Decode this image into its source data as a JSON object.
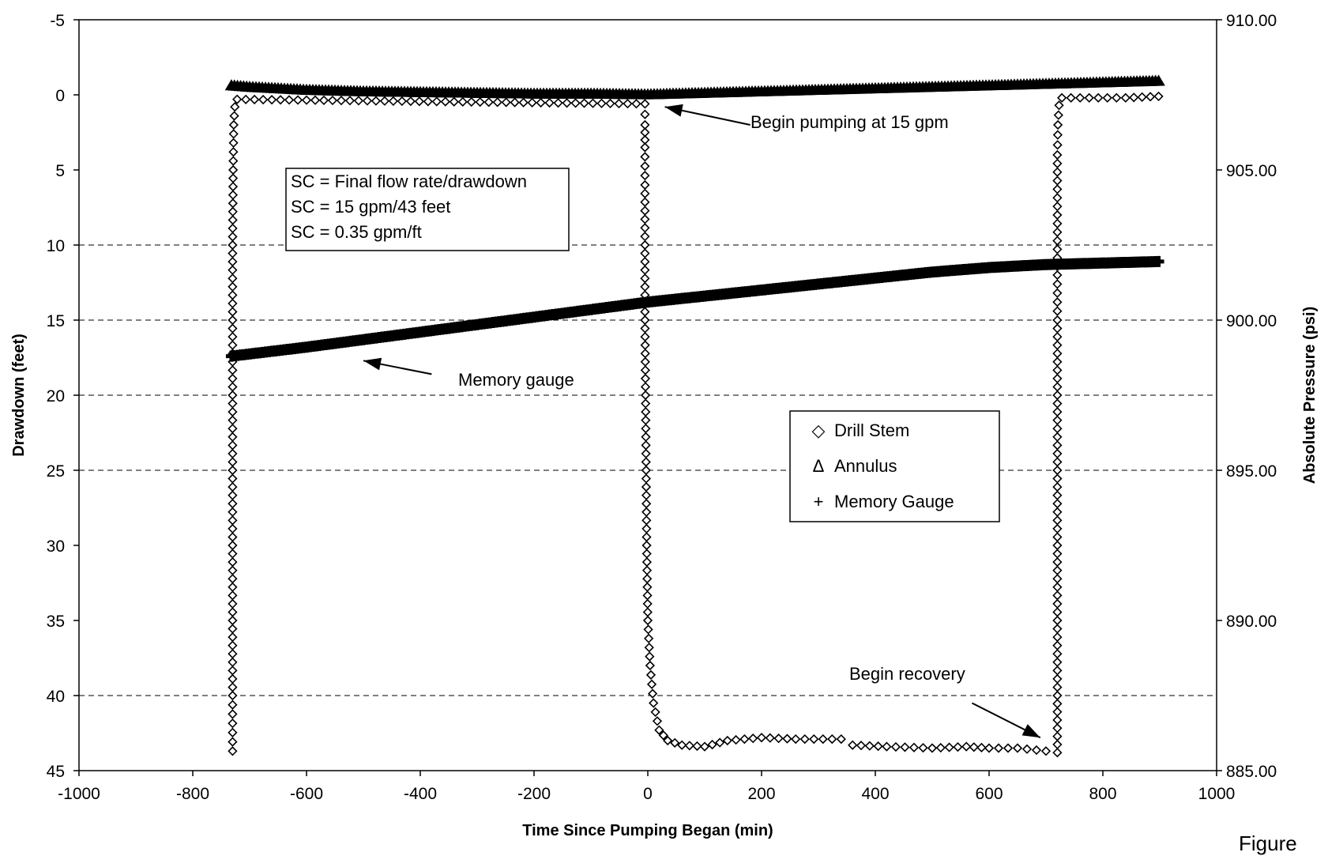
{
  "figure_label": "Figure",
  "chart_data": {
    "type": "scatter",
    "title": "",
    "xlabel": "Time Since Pumping Began (min)",
    "ylabel": "Drawdown (feet)",
    "y2label": "Absolute Pressure (psi)",
    "xlim": [
      -1000,
      1000
    ],
    "ylim": [
      -5,
      45
    ],
    "y_inverted": true,
    "y2lim": [
      885,
      910
    ],
    "x_ticks": [
      "-1000",
      "-800",
      "-600",
      "-400",
      "-200",
      "0",
      "200",
      "400",
      "600",
      "800",
      "1000"
    ],
    "y_ticks": [
      "-5",
      "0",
      "5",
      "10",
      "15",
      "20",
      "25",
      "30",
      "35",
      "40",
      "45"
    ],
    "y2_ticks": [
      "910.00",
      "905.00",
      "900.00",
      "895.00",
      "890.00",
      "885.00"
    ],
    "gridlines_y": [
      10,
      15,
      20,
      25,
      40
    ],
    "legend": {
      "position": "lower-right",
      "entries": [
        {
          "marker": "◇",
          "label": "Drill Stem"
        },
        {
          "marker": "Δ",
          "label": "Annulus"
        },
        {
          "marker": "+",
          "label": "Memory Gauge"
        }
      ]
    },
    "info_box": [
      "SC = Final flow rate/drawdown",
      "SC = 15 gpm/43 feet",
      "SC = 0.35 gpm/ft"
    ],
    "annotations": [
      {
        "text": "Begin pumping at 15 gpm",
        "x_from": 180,
        "y_from": 2.0,
        "x_to": 30,
        "y_to": 0.8
      },
      {
        "text": "Memory gauge",
        "x_from": -380,
        "y_from": 18.6,
        "x_to": -500,
        "y_to": 17.7
      },
      {
        "text": "Begin recovery",
        "x_from": 570,
        "y_from": 40.5,
        "x_to": 690,
        "y_to": 42.8
      }
    ],
    "series": [
      {
        "name": "Drill Stem",
        "marker": "diamond",
        "points": [
          [
            -730,
            43.7
          ],
          [
            -730,
            40
          ],
          [
            -730,
            35
          ],
          [
            -730,
            30
          ],
          [
            -730,
            25
          ],
          [
            -730,
            20
          ],
          [
            -730,
            15
          ],
          [
            -730,
            10
          ],
          [
            -729,
            5
          ],
          [
            -728,
            2
          ],
          [
            -726,
            0.8
          ],
          [
            -722,
            0.3
          ],
          [
            -5,
            0.6
          ],
          [
            -5,
            2
          ],
          [
            -5,
            3.5
          ],
          [
            -5,
            6
          ],
          [
            -5,
            10
          ],
          [
            -5,
            15
          ],
          [
            -4,
            20
          ],
          [
            -3,
            25
          ],
          [
            -2,
            30
          ],
          [
            0,
            35
          ],
          [
            4,
            38
          ],
          [
            10,
            40.5
          ],
          [
            20,
            42.3
          ],
          [
            35,
            43.0
          ],
          [
            60,
            43.3
          ],
          [
            100,
            43.4
          ],
          [
            140,
            43.0
          ],
          [
            200,
            42.8
          ],
          [
            260,
            42.9
          ],
          [
            340,
            42.9
          ],
          [
            360,
            43.3
          ],
          [
            420,
            43.4
          ],
          [
            500,
            43.5
          ],
          [
            560,
            43.4
          ],
          [
            600,
            43.5
          ],
          [
            650,
            43.5
          ],
          [
            700,
            43.7
          ],
          [
            720,
            43.8
          ],
          [
            720,
            40
          ],
          [
            720,
            35
          ],
          [
            720,
            30
          ],
          [
            720,
            25
          ],
          [
            720,
            20
          ],
          [
            720,
            15
          ],
          [
            720,
            12
          ],
          [
            720,
            8
          ],
          [
            720,
            4
          ],
          [
            721,
            2
          ],
          [
            723,
            0.7
          ],
          [
            728,
            0.2
          ],
          [
            760,
            0.2
          ],
          [
            840,
            0.2
          ],
          [
            898,
            0.1
          ]
        ]
      },
      {
        "name": "Annulus",
        "marker": "triangle",
        "points": [
          [
            -732,
            -0.6
          ],
          [
            -700,
            -0.5
          ],
          [
            -600,
            -0.3
          ],
          [
            -500,
            -0.2
          ],
          [
            -400,
            -0.15
          ],
          [
            -300,
            -0.1
          ],
          [
            -200,
            -0.05
          ],
          [
            -100,
            -0.05
          ],
          [
            0,
            0.0
          ],
          [
            100,
            -0.1
          ],
          [
            200,
            -0.2
          ],
          [
            300,
            -0.3
          ],
          [
            400,
            -0.4
          ],
          [
            500,
            -0.5
          ],
          [
            600,
            -0.6
          ],
          [
            700,
            -0.7
          ],
          [
            800,
            -0.8
          ],
          [
            898,
            -0.9
          ]
        ]
      },
      {
        "name": "Memory Gauge",
        "marker": "plus",
        "points": [
          [
            -732,
            898.8
          ],
          [
            -600,
            899.1
          ],
          [
            -500,
            899.35
          ],
          [
            -400,
            899.6
          ],
          [
            -300,
            899.85
          ],
          [
            -200,
            900.1
          ],
          [
            -100,
            900.35
          ],
          [
            0,
            900.6
          ],
          [
            100,
            900.8
          ],
          [
            200,
            901.0
          ],
          [
            300,
            901.2
          ],
          [
            400,
            901.4
          ],
          [
            500,
            901.6
          ],
          [
            600,
            901.75
          ],
          [
            700,
            901.85
          ],
          [
            800,
            901.9
          ],
          [
            898,
            901.95
          ]
        ]
      }
    ]
  }
}
